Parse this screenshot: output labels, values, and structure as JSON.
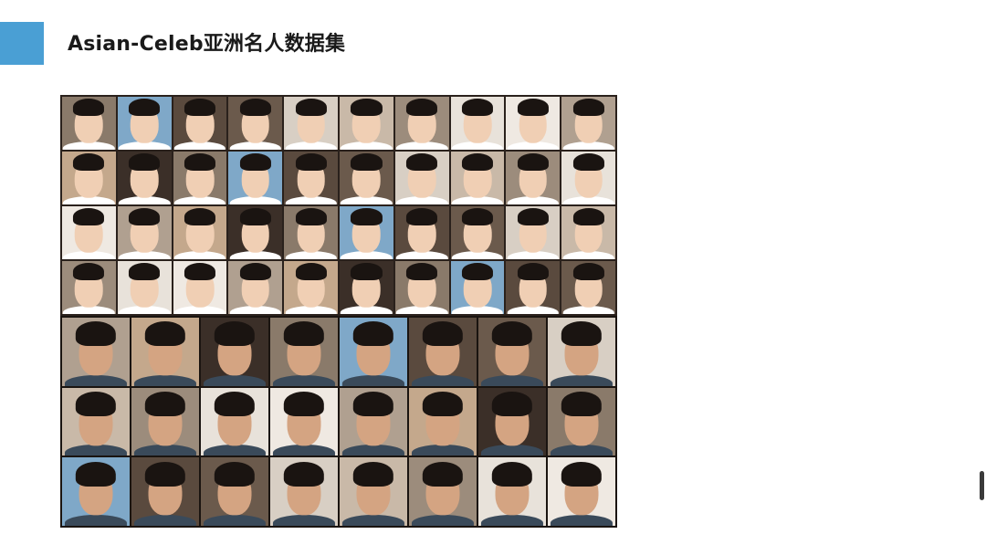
{
  "slide": {
    "title": "Asian-Celeb亚洲名人数据集",
    "accent_color": "#4a9fd4"
  },
  "mosaic": {
    "male_rows": 4,
    "male_cols": 10,
    "female_rows": 3,
    "female_cols": 8
  }
}
